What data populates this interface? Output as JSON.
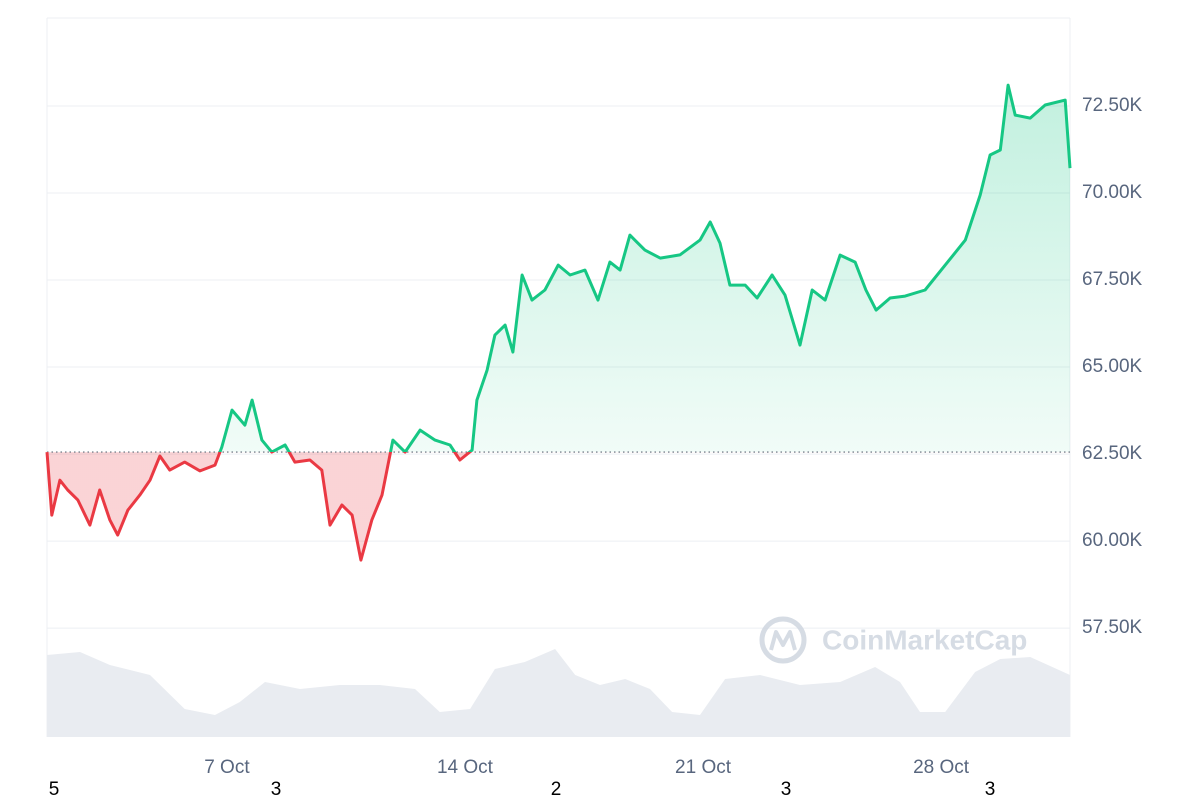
{
  "chart_data": {
    "type": "line",
    "x": [
      1.71,
      1.85,
      2.09,
      2.32,
      2.62,
      2.97,
      3.26,
      3.56,
      3.79,
      4.09,
      4.44,
      4.74,
      5.03,
      5.32,
      5.76,
      6.21,
      6.65,
      6.85,
      7.15,
      7.53,
      7.74,
      8.03,
      8.32,
      8.71,
      9.0,
      9.44,
      9.79,
      10.03,
      10.38,
      10.68,
      10.94,
      11.26,
      11.56,
      11.88,
      12.24,
      12.68,
      13.12,
      13.56,
      13.85,
      14.21,
      14.35,
      14.65,
      14.88,
      15.18,
      15.41,
      15.68,
      15.97,
      16.35,
      16.74,
      17.09,
      17.53,
      17.91,
      18.26,
      18.56,
      18.85,
      19.29,
      19.74,
      20.32,
      20.91,
      21.21,
      21.5,
      21.79,
      22.24,
      22.59,
      23.03,
      23.41,
      23.85,
      24.21,
      24.59,
      25.03,
      25.47,
      25.79,
      26.09,
      26.5,
      26.94,
      27.53,
      28.12,
      28.71,
      29.15,
      29.44,
      29.74,
      29.97,
      30.18,
      30.62,
      31.06,
      31.65,
      31.79
    ],
    "series": [
      {
        "values": [
          62557,
          60747,
          61750,
          61466,
          61178,
          60460,
          61466,
          60603,
          60172,
          60891,
          61322,
          61750,
          62443,
          62040,
          62270,
          62017,
          62184,
          62700,
          63764,
          63333,
          64052,
          62902,
          62557,
          62760,
          62270,
          62330,
          62040,
          60460,
          61035,
          60747,
          59454,
          60603,
          61322,
          62902,
          62557,
          63190,
          62902,
          62760,
          62330,
          62615,
          64052,
          64914,
          65919,
          66207,
          65431,
          67644,
          66925,
          67213,
          67931,
          67644,
          67787,
          66925,
          68017,
          67787,
          68793,
          68362,
          68132,
          68224,
          68649,
          69167,
          68563,
          67356,
          67356,
          66983,
          67644,
          67069,
          65632,
          67213,
          66925,
          68218,
          68017,
          67213,
          66638,
          66983,
          67040,
          67213,
          67931,
          68649,
          69943,
          71092,
          71236,
          73103,
          72241,
          72155,
          72529,
          72672,
          70718
        ],
        "color_up": "#16c784",
        "color_down": "#ea3943"
      }
    ],
    "volume": {
      "x": [
        1.71,
        2.68,
        3.56,
        4.74,
        5.76,
        6.65,
        7.38,
        8.12,
        9.15,
        10.32,
        11.5,
        12.53,
        13.26,
        14.15,
        14.88,
        15.76,
        16.65,
        17.24,
        17.97,
        18.71,
        19.44,
        20.09,
        20.91,
        21.65,
        22.68,
        23.85,
        25.03,
        26.06,
        26.79,
        27.38,
        28.12,
        29.0,
        29.74,
        30.62,
        31.79
      ],
      "values": [
        82,
        85,
        72,
        62,
        28,
        22,
        35,
        55,
        48,
        52,
        52,
        48,
        25,
        28,
        68,
        75,
        88,
        62,
        52,
        58,
        48,
        25,
        22,
        58,
        62,
        52,
        55,
        70,
        55,
        25,
        25,
        65,
        78,
        80,
        62
      ],
      "color": "#e9ecf1"
    },
    "xlim": [
      1.71,
      31.79
    ],
    "xticks": [
      {
        "value": 7,
        "label": "7 Oct"
      },
      {
        "value": 14,
        "label": "14 Oct"
      },
      {
        "value": 21,
        "label": "21 Oct"
      },
      {
        "value": 28,
        "label": "28 Oct"
      }
    ],
    "ylim": [
      54370,
      75030
    ],
    "yticks": [
      {
        "value": 57500,
        "label": "57.50K"
      },
      {
        "value": 60000,
        "label": "60.00K"
      },
      {
        "value": 62500,
        "label": "62.50K"
      },
      {
        "value": 65000,
        "label": "65.00K"
      },
      {
        "value": 67500,
        "label": "67.50K"
      },
      {
        "value": 70000,
        "label": "70.00K"
      },
      {
        "value": 72500,
        "label": "72.50K"
      }
    ],
    "grid": true,
    "watermark": "CoinMarketCap",
    "footer_labels": [
      "5",
      "3",
      "2",
      "3",
      "3"
    ]
  }
}
